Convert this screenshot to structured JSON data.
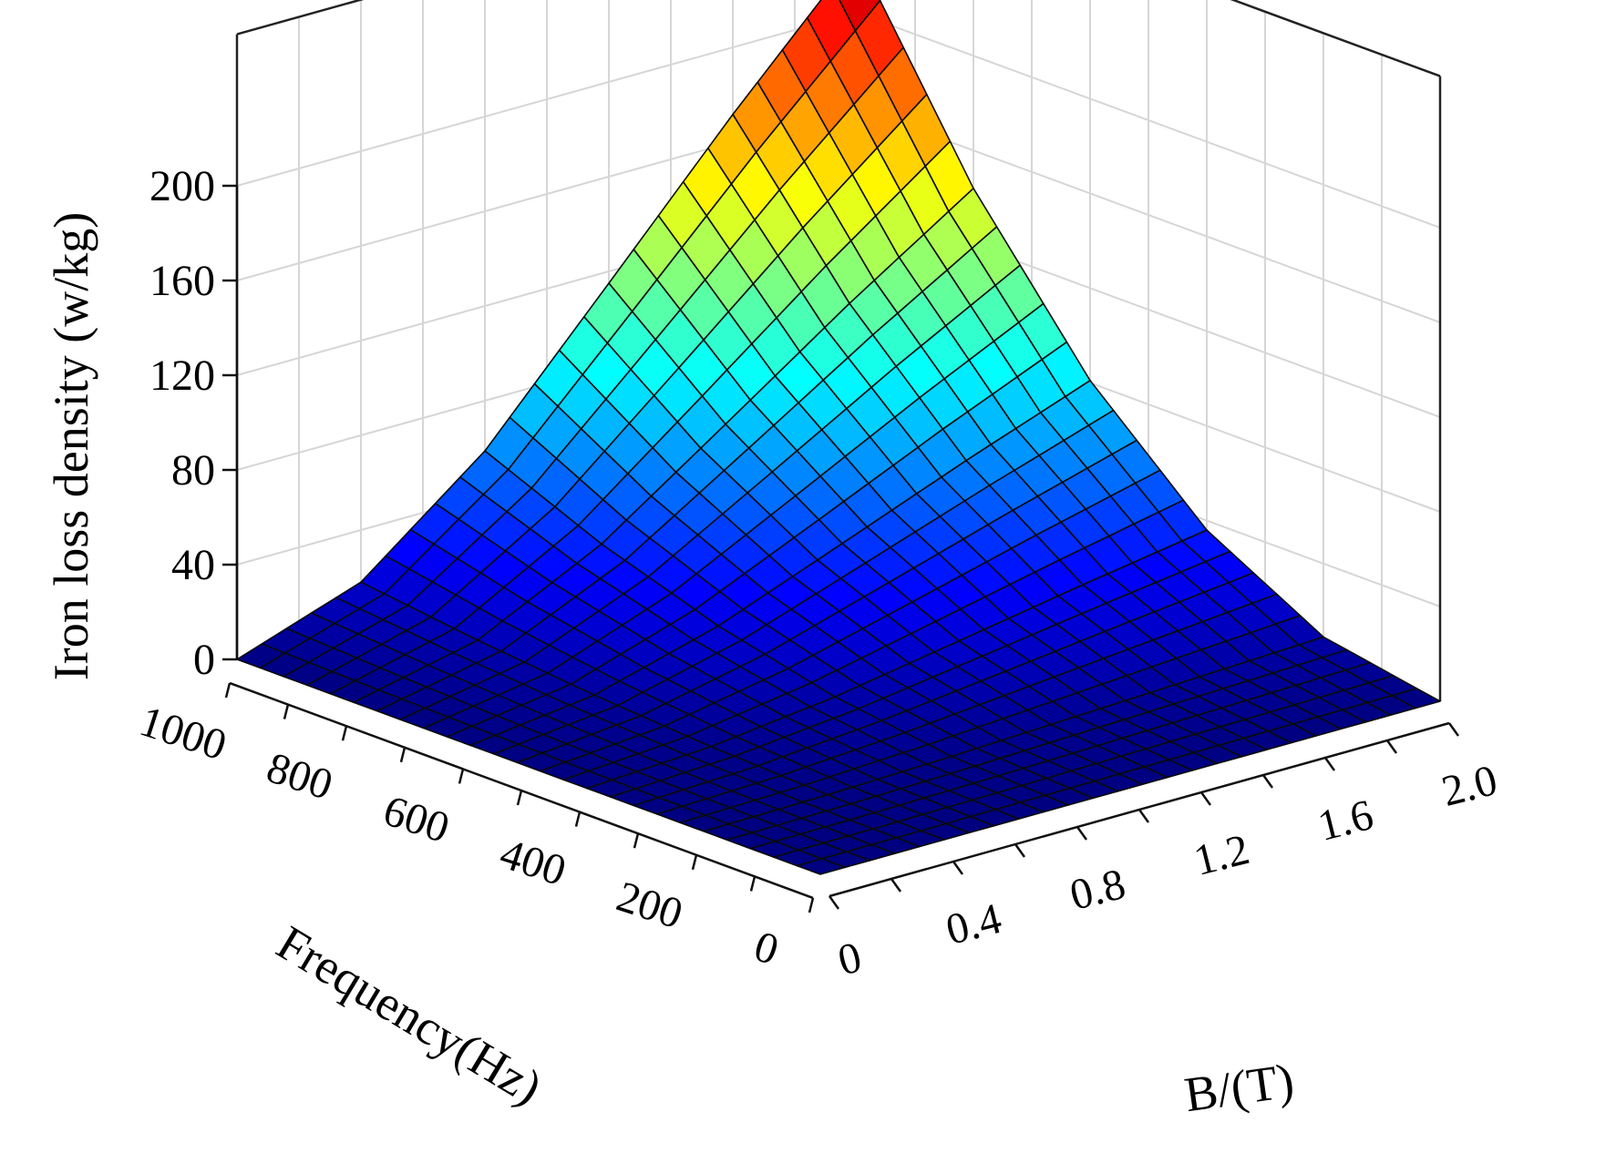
{
  "chart_data": {
    "type": "surface3d",
    "title": "",
    "zlabel": "Iron loss density (w/kg)",
    "xlabel": "Frequency(Hz)",
    "ylabel": "B/(T)",
    "x_ticks": [
      "0",
      "200",
      "400",
      "600",
      "800",
      "1000"
    ],
    "y_ticks": [
      "0",
      "0.4",
      "0.8",
      "1.2",
      "1.6",
      "2.0"
    ],
    "z_ticks": [
      "0",
      "40",
      "80",
      "120",
      "160",
      "200"
    ],
    "x_range": [
      0,
      1000
    ],
    "y_range": [
      0,
      2.0
    ],
    "z_range": [
      0,
      200
    ],
    "grid": true,
    "colormap": "jet",
    "grid_lines_per_axis": 25,
    "surface": {
      "frequency_Hz": [
        0,
        200,
        400,
        600,
        800,
        1000
      ],
      "B_T": [
        0,
        0.4,
        0.8,
        1.2,
        1.6,
        2.0
      ],
      "iron_loss_w_per_kg": [
        [
          0,
          0,
          0,
          0,
          0,
          0
        ],
        [
          0,
          0.8,
          3.0,
          6.6,
          11.6,
          18.0
        ],
        [
          0,
          2.4,
          9.4,
          21.2,
          37.6,
          58.8
        ],
        [
          0,
          4.6,
          18.4,
          41.4,
          73.6,
          115.0
        ],
        [
          0,
          6.8,
          27.5,
          61.8,
          110.0,
          171.7
        ],
        [
          0,
          9.0,
          36.0,
          81.0,
          144.0,
          225.0
        ]
      ]
    }
  }
}
